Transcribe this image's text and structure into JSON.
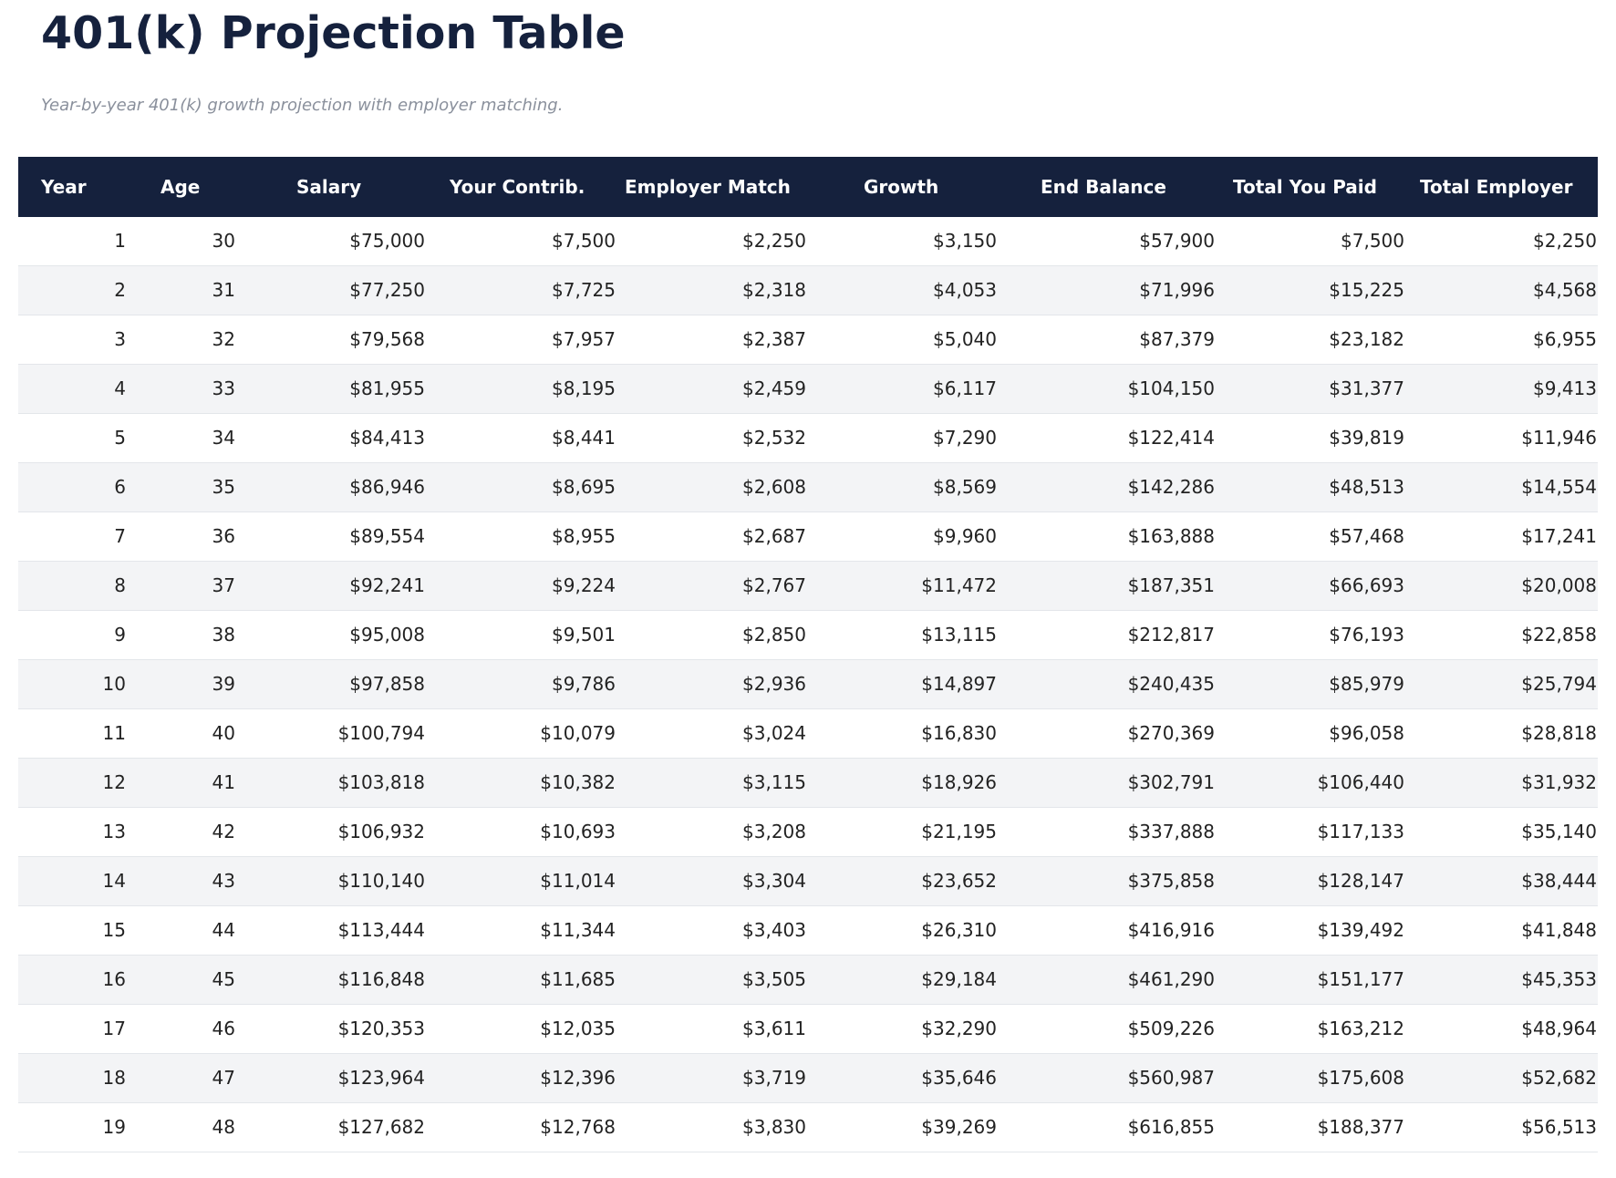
{
  "header": {
    "title": "401(k) Projection Table",
    "subtitle": "Year-by-year 401(k) growth projection with employer matching."
  },
  "table": {
    "columns": [
      "Year",
      "Age",
      "Salary",
      "Your Contrib.",
      "Employer Match",
      "Growth",
      "End Balance",
      "Total You Paid",
      "Total Employer"
    ],
    "rows": [
      [
        1,
        30,
        "$75,000",
        "$7,500",
        "$2,250",
        "$3,150",
        "$57,900",
        "$7,500",
        "$2,250"
      ],
      [
        2,
        31,
        "$77,250",
        "$7,725",
        "$2,318",
        "$4,053",
        "$71,996",
        "$15,225",
        "$4,568"
      ],
      [
        3,
        32,
        "$79,568",
        "$7,957",
        "$2,387",
        "$5,040",
        "$87,379",
        "$23,182",
        "$6,955"
      ],
      [
        4,
        33,
        "$81,955",
        "$8,195",
        "$2,459",
        "$6,117",
        "$104,150",
        "$31,377",
        "$9,413"
      ],
      [
        5,
        34,
        "$84,413",
        "$8,441",
        "$2,532",
        "$7,290",
        "$122,414",
        "$39,819",
        "$11,946"
      ],
      [
        6,
        35,
        "$86,946",
        "$8,695",
        "$2,608",
        "$8,569",
        "$142,286",
        "$48,513",
        "$14,554"
      ],
      [
        7,
        36,
        "$89,554",
        "$8,955",
        "$2,687",
        "$9,960",
        "$163,888",
        "$57,468",
        "$17,241"
      ],
      [
        8,
        37,
        "$92,241",
        "$9,224",
        "$2,767",
        "$11,472",
        "$187,351",
        "$66,693",
        "$20,008"
      ],
      [
        9,
        38,
        "$95,008",
        "$9,501",
        "$2,850",
        "$13,115",
        "$212,817",
        "$76,193",
        "$22,858"
      ],
      [
        10,
        39,
        "$97,858",
        "$9,786",
        "$2,936",
        "$14,897",
        "$240,435",
        "$85,979",
        "$25,794"
      ],
      [
        11,
        40,
        "$100,794",
        "$10,079",
        "$3,024",
        "$16,830",
        "$270,369",
        "$96,058",
        "$28,818"
      ],
      [
        12,
        41,
        "$103,818",
        "$10,382",
        "$3,115",
        "$18,926",
        "$302,791",
        "$106,440",
        "$31,932"
      ],
      [
        13,
        42,
        "$106,932",
        "$10,693",
        "$3,208",
        "$21,195",
        "$337,888",
        "$117,133",
        "$35,140"
      ],
      [
        14,
        43,
        "$110,140",
        "$11,014",
        "$3,304",
        "$23,652",
        "$375,858",
        "$128,147",
        "$38,444"
      ],
      [
        15,
        44,
        "$113,444",
        "$11,344",
        "$3,403",
        "$26,310",
        "$416,916",
        "$139,492",
        "$41,848"
      ],
      [
        16,
        45,
        "$116,848",
        "$11,685",
        "$3,505",
        "$29,184",
        "$461,290",
        "$151,177",
        "$45,353"
      ],
      [
        17,
        46,
        "$120,353",
        "$12,035",
        "$3,611",
        "$32,290",
        "$509,226",
        "$163,212",
        "$48,964"
      ],
      [
        18,
        47,
        "$123,964",
        "$12,396",
        "$3,719",
        "$35,646",
        "$560,987",
        "$175,608",
        "$52,682"
      ],
      [
        19,
        48,
        "$127,682",
        "$12,768",
        "$3,830",
        "$39,269",
        "$616,855",
        "$188,377",
        "$56,513"
      ]
    ]
  }
}
